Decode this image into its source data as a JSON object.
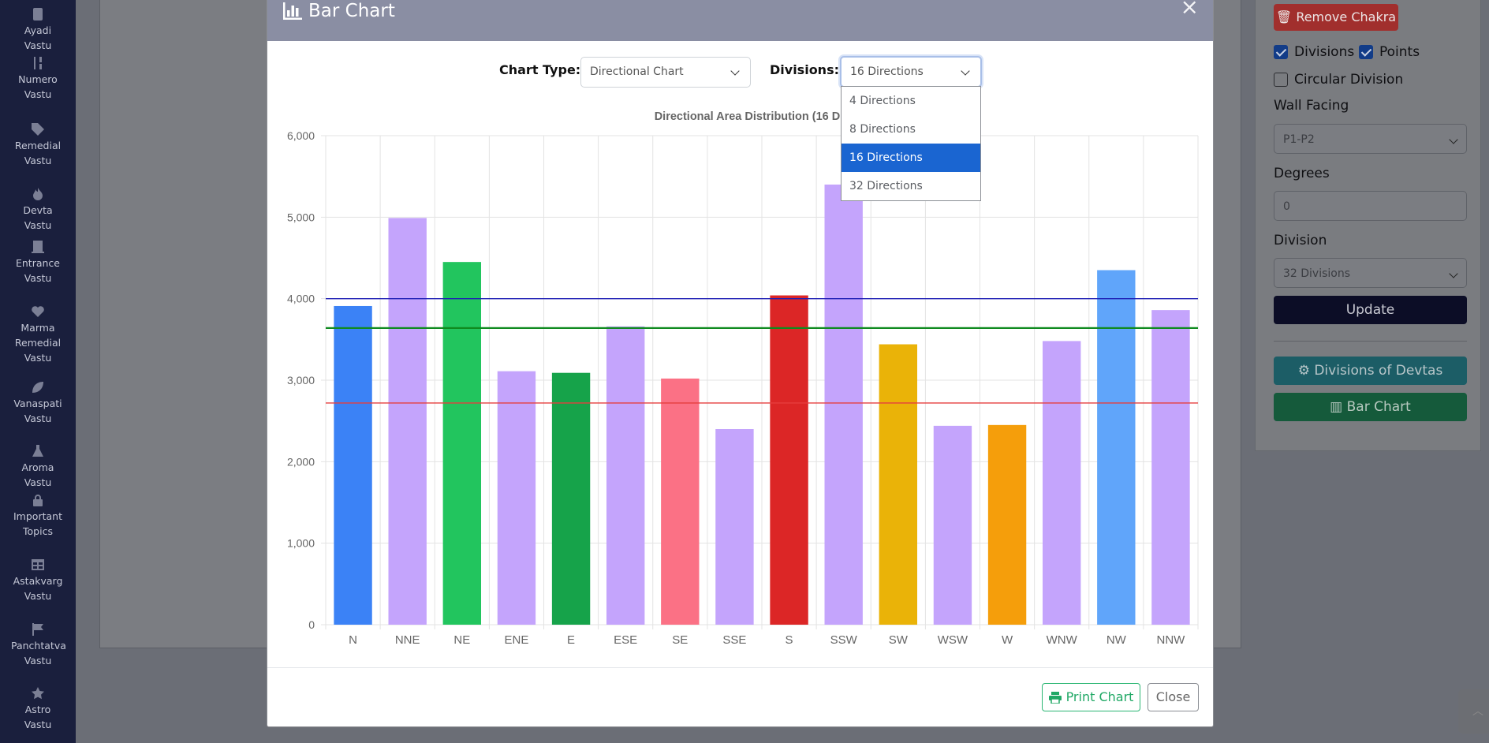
{
  "sidebar": {
    "items": [
      {
        "label": "Ayadi Vastu",
        "icon": "calculator-icon"
      },
      {
        "label": "Numero Vastu",
        "icon": "sort-numeric-icon"
      },
      {
        "label": "Remedial Vastu",
        "icon": "tags-icon"
      },
      {
        "label": "Devta Vastu",
        "icon": "fire-icon"
      },
      {
        "label": "Entrance Vastu",
        "icon": "door-icon"
      },
      {
        "label": "Marma Remedial Vastu",
        "icon": "heart-icon"
      },
      {
        "label": "Vanaspati Vastu",
        "icon": "leaf-icon"
      },
      {
        "label": "Aroma Vastu",
        "icon": "flask-icon"
      },
      {
        "label": "Important Topics",
        "icon": "lock-icon"
      },
      {
        "label": "Astakvarg Vastu",
        "icon": "table-icon"
      },
      {
        "label": "Panchtatva Vastu",
        "icon": "flag-icon"
      },
      {
        "label": "Astro Vastu",
        "icon": "star-icon"
      }
    ]
  },
  "right_panel": {
    "remove_label": "Remove Chakra",
    "divisions_label": "Divisions",
    "divisions_checked": true,
    "points_label": "Points",
    "points_checked": true,
    "circular_label": "Circular Division",
    "circular_checked": false,
    "wall_facing_label": "Wall Facing",
    "wall_facing_value": "P1-P2",
    "degrees_label": "Degrees",
    "degrees_placeholder": "0",
    "division_label": "Division",
    "division_value": "32 Divisions",
    "update_label": "Update",
    "devtas_label": "Divisions of Devtas",
    "barchart_label": "Bar Chart"
  },
  "modal": {
    "title": "Bar Chart",
    "close_glyph": "×",
    "chart_type_label": "Chart Type:",
    "chart_type_value": "Directional Chart",
    "divisions_label": "Divisions:",
    "divisions_value": "16 Directions",
    "divisions_options": [
      "4 Directions",
      "8 Directions",
      "16 Directions",
      "32 Directions"
    ],
    "divisions_selected_index": 2,
    "print_label": "Print Chart",
    "close_label": "Close"
  },
  "colors": {
    "sidebar_bg": "#1a1f3d",
    "modal_header": "#8a8ea3",
    "accent_blue": "#1a65d1",
    "print_green": "#20a865"
  },
  "chart_data": {
    "type": "bar",
    "title": "Directional Area Distribution (16 Divisio",
    "categories": [
      "N",
      "NNE",
      "NE",
      "ENE",
      "E",
      "ESE",
      "SE",
      "SSE",
      "S",
      "SSW",
      "SW",
      "WSW",
      "W",
      "WNW",
      "NW",
      "NNW"
    ],
    "values": [
      3910,
      4990,
      4450,
      3110,
      3090,
      3660,
      3020,
      2400,
      4040,
      5400,
      3440,
      2440,
      2450,
      3480,
      4350,
      3860
    ],
    "bar_colors": [
      "#3b82f6",
      "#c4a4fc",
      "#22c55e",
      "#c4a4fc",
      "#16a34a",
      "#c4a4fc",
      "#fb7185",
      "#c4a4fc",
      "#dc2626",
      "#c4a4fc",
      "#eab308",
      "#c4a4fc",
      "#f59e0b",
      "#c4a4fc",
      "#60a5fa",
      "#c4a4fc"
    ],
    "ylim": [
      0,
      6000
    ],
    "yticks": [
      0,
      1000,
      2000,
      3000,
      4000,
      5000,
      6000
    ],
    "ytick_labels": [
      "0",
      "1,000",
      "2,000",
      "3,000",
      "4,000",
      "5,000",
      "6,000"
    ],
    "reference_lines": [
      {
        "value": 4000,
        "color": "#1e1eb4"
      },
      {
        "value": 3640,
        "color": "#0f8a1f"
      },
      {
        "value": 2720,
        "color": "#e53e3e"
      }
    ],
    "grid": true
  }
}
